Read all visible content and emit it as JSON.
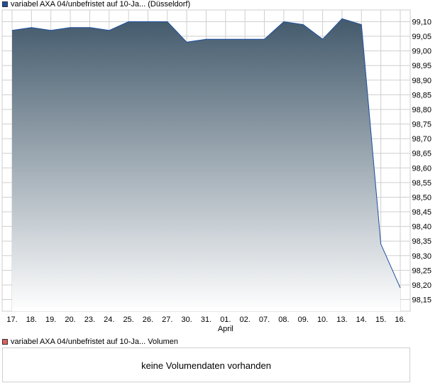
{
  "legend": {
    "price_label": "variabel AXA 04/unbefristet auf 10-Ja... (Düsseldorf)",
    "volume_label": "variabel AXA 04/unbefristet auf 10-Ja... Volumen"
  },
  "volume_panel": {
    "message": "keine Volumendaten vorhanden"
  },
  "colors": {
    "line": "#1d4fa0",
    "area_top": "#435a6c",
    "area_bottom": "#ffffff",
    "grid": "#cfcfcf"
  },
  "chart_data": {
    "type": "area",
    "categories": [
      "17.",
      "18.",
      "19.",
      "20.",
      "23.",
      "24.",
      "25.",
      "26.",
      "27.",
      "30.",
      "31.",
      "01.",
      "02.",
      "07.",
      "08.",
      "09.",
      "10.",
      "13.",
      "14.",
      "15.",
      "16."
    ],
    "month_label": "April",
    "series": [
      {
        "values": [
          99.07,
          99.08,
          99.07,
          99.08,
          99.08,
          99.07,
          99.1,
          99.1,
          99.1,
          99.03,
          99.04,
          99.04,
          99.04,
          99.04,
          99.1,
          99.09,
          99.04,
          99.11,
          99.09,
          98.34,
          98.19
        ]
      }
    ],
    "y_ticks": [
      "98,15",
      "98,20",
      "98,25",
      "98,30",
      "98,35",
      "98,40",
      "98,45",
      "98,50",
      "98,55",
      "98,60",
      "98,65",
      "98,70",
      "98,75",
      "98,80",
      "98,85",
      "98,90",
      "98,95",
      "99,00",
      "99,05",
      "99,10"
    ],
    "ylim": [
      98.11,
      99.14
    ],
    "grid": true
  }
}
